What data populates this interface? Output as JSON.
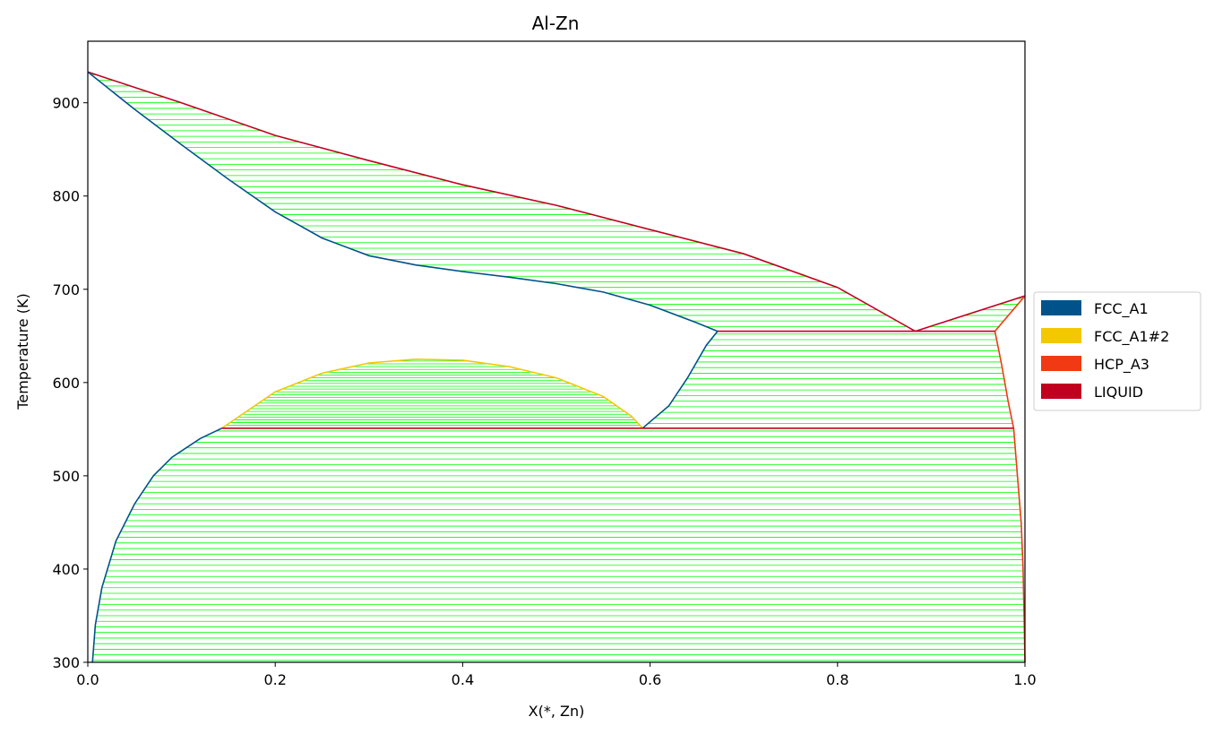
{
  "chart_data": {
    "type": "line",
    "title": "Al-Zn",
    "xlabel": "X(*, Zn)",
    "ylabel": "Temperature (K)",
    "xlim": [
      0.0,
      1.0
    ],
    "ylim": [
      300,
      966
    ],
    "x_ticks": [
      "0.0",
      "0.2",
      "0.4",
      "0.6",
      "0.8",
      "1.0"
    ],
    "y_ticks": [
      "300",
      "400",
      "500",
      "600",
      "700",
      "800",
      "900"
    ],
    "grid": false,
    "legend_position": "right",
    "legend": [
      {
        "name": "FCC_A1",
        "color": "#00538a"
      },
      {
        "name": "FCC_A1#2",
        "color": "#f4c800"
      },
      {
        "name": "HCP_A3",
        "color": "#f13a13"
      },
      {
        "name": "LIQUID",
        "color": "#c10020"
      }
    ],
    "tieline_color": "#00ff00",
    "boundaries": [
      {
        "phase": "LIQUID",
        "color": "#c10020",
        "points": [
          [
            0.0,
            933
          ],
          [
            0.1,
            900
          ],
          [
            0.2,
            865
          ],
          [
            0.3,
            838
          ],
          [
            0.4,
            812
          ],
          [
            0.5,
            790
          ],
          [
            0.6,
            764
          ],
          [
            0.7,
            738
          ],
          [
            0.8,
            702
          ],
          [
            0.883,
            655
          ]
        ]
      },
      {
        "phase": "LIQUID",
        "color": "#c10020",
        "points": [
          [
            0.883,
            655
          ],
          [
            1.0,
            693
          ]
        ]
      },
      {
        "phase": "FCC_A1",
        "color": "#00538a",
        "points": [
          [
            0.0,
            933
          ],
          [
            0.05,
            893
          ],
          [
            0.1,
            855
          ],
          [
            0.15,
            818
          ],
          [
            0.2,
            783
          ],
          [
            0.25,
            755
          ],
          [
            0.3,
            736
          ],
          [
            0.35,
            726
          ],
          [
            0.4,
            719
          ],
          [
            0.45,
            713
          ],
          [
            0.5,
            706
          ],
          [
            0.55,
            697
          ],
          [
            0.6,
            683
          ],
          [
            0.65,
            664
          ],
          [
            0.672,
            655
          ]
        ]
      },
      {
        "phase": "FCC_A1",
        "color": "#00538a",
        "points": [
          [
            0.672,
            655
          ],
          [
            0.66,
            640
          ],
          [
            0.64,
            605
          ],
          [
            0.62,
            575
          ],
          [
            0.592,
            551
          ]
        ]
      },
      {
        "phase": "FCC_A1",
        "color": "#00538a",
        "points": [
          [
            0.143,
            551
          ],
          [
            0.12,
            540
          ],
          [
            0.09,
            520
          ],
          [
            0.07,
            500
          ],
          [
            0.05,
            470
          ],
          [
            0.03,
            430
          ],
          [
            0.015,
            380
          ],
          [
            0.008,
            340
          ],
          [
            0.005,
            300
          ]
        ]
      },
      {
        "phase": "FCC_A1#2",
        "color": "#f4c800",
        "points": [
          [
            0.143,
            551
          ],
          [
            0.2,
            590
          ],
          [
            0.25,
            610
          ],
          [
            0.3,
            621
          ],
          [
            0.35,
            625
          ],
          [
            0.4,
            624
          ],
          [
            0.45,
            617
          ],
          [
            0.5,
            605
          ],
          [
            0.55,
            585
          ],
          [
            0.58,
            564
          ],
          [
            0.592,
            551
          ]
        ]
      },
      {
        "phase": "HCP_A3",
        "color": "#f13a13",
        "points": [
          [
            0.968,
            655
          ],
          [
            0.975,
            620
          ],
          [
            0.982,
            580
          ],
          [
            0.988,
            551
          ],
          [
            0.992,
            500
          ],
          [
            0.996,
            450
          ],
          [
            0.998,
            400
          ],
          [
            0.999,
            350
          ],
          [
            1.0,
            300
          ]
        ]
      },
      {
        "phase": "HCP_A3",
        "color": "#f13a13",
        "points": [
          [
            0.968,
            655
          ],
          [
            1.0,
            693
          ]
        ]
      },
      {
        "phase": "LIQUID",
        "color": "#c10020",
        "points": [
          [
            0.672,
            655
          ],
          [
            0.968,
            655
          ]
        ]
      },
      {
        "phase": "LIQUID",
        "color": "#c10020",
        "points": [
          [
            0.143,
            551
          ],
          [
            0.988,
            551
          ]
        ]
      }
    ]
  }
}
